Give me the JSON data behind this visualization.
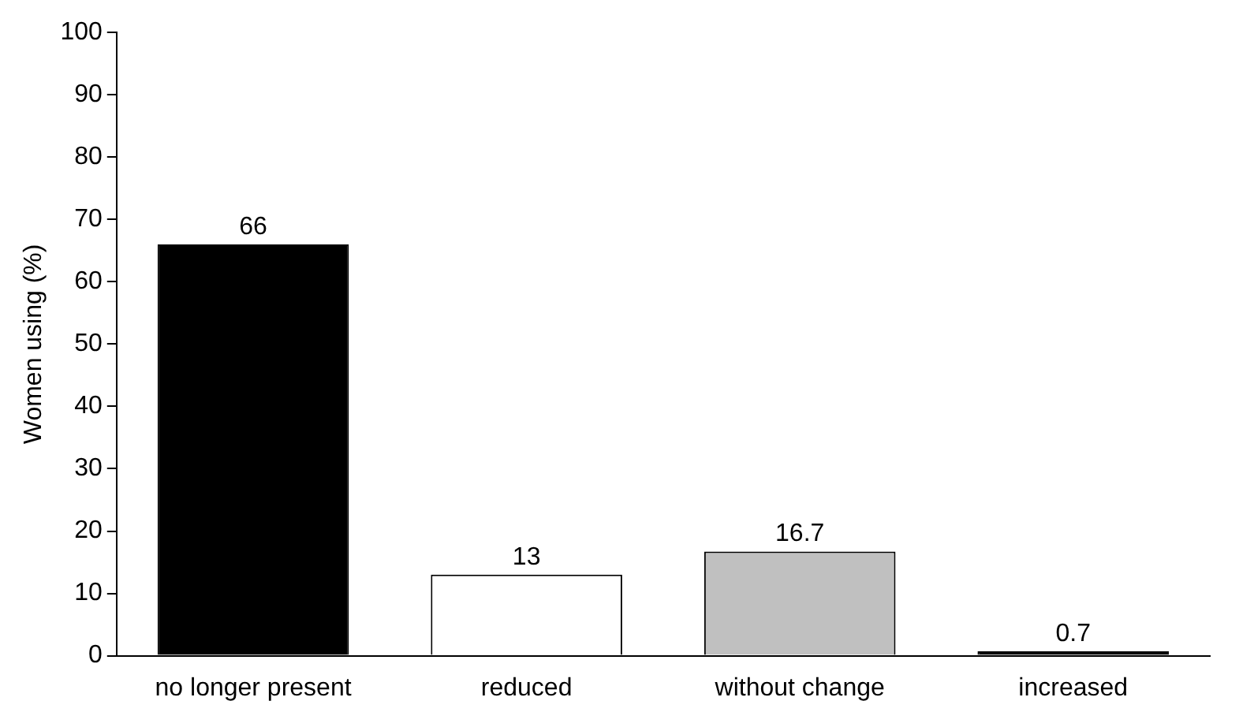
{
  "chart_data": {
    "type": "bar",
    "ylabel": "Women using (%)",
    "categories": [
      "no longer present",
      "reduced",
      "without change",
      "increased"
    ],
    "values": [
      66,
      13,
      16.7,
      0.7
    ],
    "colors": [
      "#000000",
      "#ffffff",
      "#c0c0c0",
      "#000000"
    ],
    "ylim": [
      0,
      100
    ],
    "yticks": [
      0,
      10,
      20,
      30,
      40,
      50,
      60,
      70,
      80,
      90,
      100
    ],
    "grid": false,
    "legend": false,
    "data_labels": true
  }
}
